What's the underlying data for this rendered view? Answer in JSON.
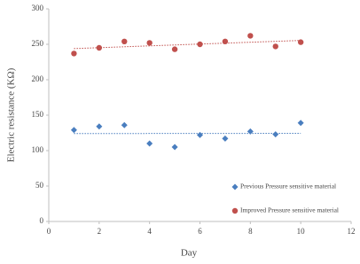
{
  "chart_data": {
    "type": "scatter",
    "x_label": "Day",
    "y_label": "Electric resistance (KΩ)",
    "x": [
      1,
      2,
      3,
      4,
      5,
      6,
      7,
      8,
      9,
      10
    ],
    "series": [
      {
        "name": "Previous Pressure sensitive material",
        "color": "#4a7ebf",
        "marker": "diamond",
        "values": [
          129,
          134,
          136,
          110,
          105,
          122,
          117,
          127,
          123,
          139
        ]
      },
      {
        "name": "Improved Pressure sensitive material",
        "color": "#c0504d",
        "marker": "circle",
        "values": [
          237,
          245,
          254,
          252,
          243,
          250,
          254,
          262,
          247,
          253
        ]
      }
    ],
    "xlim": [
      0,
      12
    ],
    "xticks": [
      0,
      2,
      4,
      6,
      8,
      10,
      12
    ],
    "ylim": [
      0,
      300
    ],
    "yticks": [
      0,
      50,
      100,
      150,
      200,
      250,
      300
    ],
    "grid": false,
    "trendline": true,
    "legend": "lower right"
  }
}
